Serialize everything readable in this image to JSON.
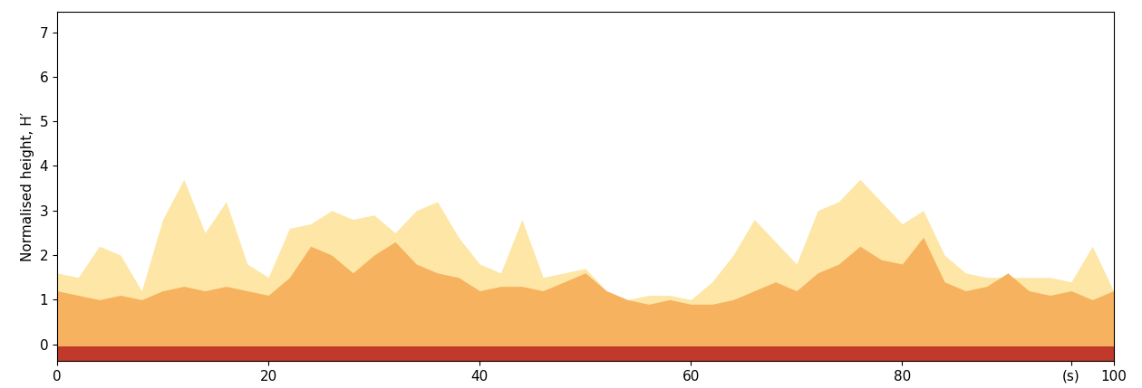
{
  "chart_data": {
    "type": "area",
    "y_label": "Normalised height, H′",
    "x": [
      0,
      2,
      4,
      6,
      8,
      10,
      12,
      14,
      16,
      18,
      20,
      22,
      24,
      26,
      28,
      30,
      32,
      34,
      36,
      38,
      40,
      42,
      44,
      46,
      48,
      50,
      52,
      54,
      56,
      58,
      60,
      62,
      64,
      66,
      68,
      70,
      72,
      74,
      76,
      78,
      80,
      82,
      84,
      86,
      88,
      90,
      92,
      94,
      96,
      98,
      100
    ],
    "series": [
      {
        "color": "#fde6a6",
        "values": [
          1.6,
          1.5,
          2.2,
          2.0,
          1.2,
          2.8,
          3.7,
          2.5,
          3.2,
          1.8,
          1.5,
          2.6,
          2.7,
          3.0,
          2.8,
          2.9,
          2.5,
          3.0,
          3.2,
          2.4,
          1.8,
          1.6,
          2.8,
          1.5,
          1.6,
          1.7,
          1.2,
          1.0,
          1.1,
          1.1,
          1.0,
          1.4,
          2.0,
          2.8,
          2.3,
          1.8,
          3.0,
          3.2,
          3.7,
          3.2,
          2.7,
          3.0,
          2.0,
          1.6,
          1.5,
          1.5,
          1.5,
          1.5,
          1.4,
          2.2,
          1.2
        ]
      },
      {
        "color": "#f6b25e",
        "values": [
          1.2,
          1.1,
          1.0,
          1.1,
          1.0,
          1.2,
          1.3,
          1.2,
          1.3,
          1.2,
          1.1,
          1.5,
          2.2,
          2.0,
          1.6,
          2.0,
          2.3,
          1.8,
          1.6,
          1.5,
          1.2,
          1.3,
          1.3,
          1.2,
          1.4,
          1.6,
          1.2,
          1.0,
          0.9,
          1.0,
          0.9,
          0.9,
          1.0,
          1.2,
          1.4,
          1.2,
          1.6,
          1.8,
          2.2,
          1.9,
          1.8,
          2.4,
          1.4,
          1.2,
          1.3,
          1.6,
          1.2,
          1.1,
          1.2,
          1.0,
          1.2
        ]
      },
      {
        "color": "#c0392b",
        "values": [
          -0.05,
          -0.05,
          -0.05,
          -0.05,
          -0.05,
          -0.05,
          -0.05,
          -0.05,
          -0.05,
          -0.05,
          -0.05,
          -0.05,
          -0.05,
          -0.05,
          -0.05,
          -0.05,
          -0.05,
          -0.05,
          -0.05,
          -0.05,
          -0.05,
          -0.05,
          -0.05,
          -0.05,
          -0.05,
          -0.05,
          -0.05,
          -0.05,
          -0.05,
          -0.05,
          -0.05,
          -0.05,
          -0.05,
          -0.05,
          -0.05,
          -0.05,
          -0.05,
          -0.05,
          -0.05,
          -0.05,
          -0.05,
          -0.05,
          -0.05,
          -0.05,
          -0.05,
          -0.05,
          -0.05,
          -0.05,
          -0.05,
          -0.05,
          -0.05
        ]
      }
    ],
    "xlim": [
      0,
      100
    ],
    "xticks": [
      0,
      20,
      40,
      60,
      80,
      {
        "value": 96,
        "label": "(s)"
      },
      100
    ],
    "ylim": [
      -0.37,
      7.46
    ],
    "yticks": [
      0,
      1,
      2,
      3,
      4,
      5,
      6,
      7
    ]
  }
}
